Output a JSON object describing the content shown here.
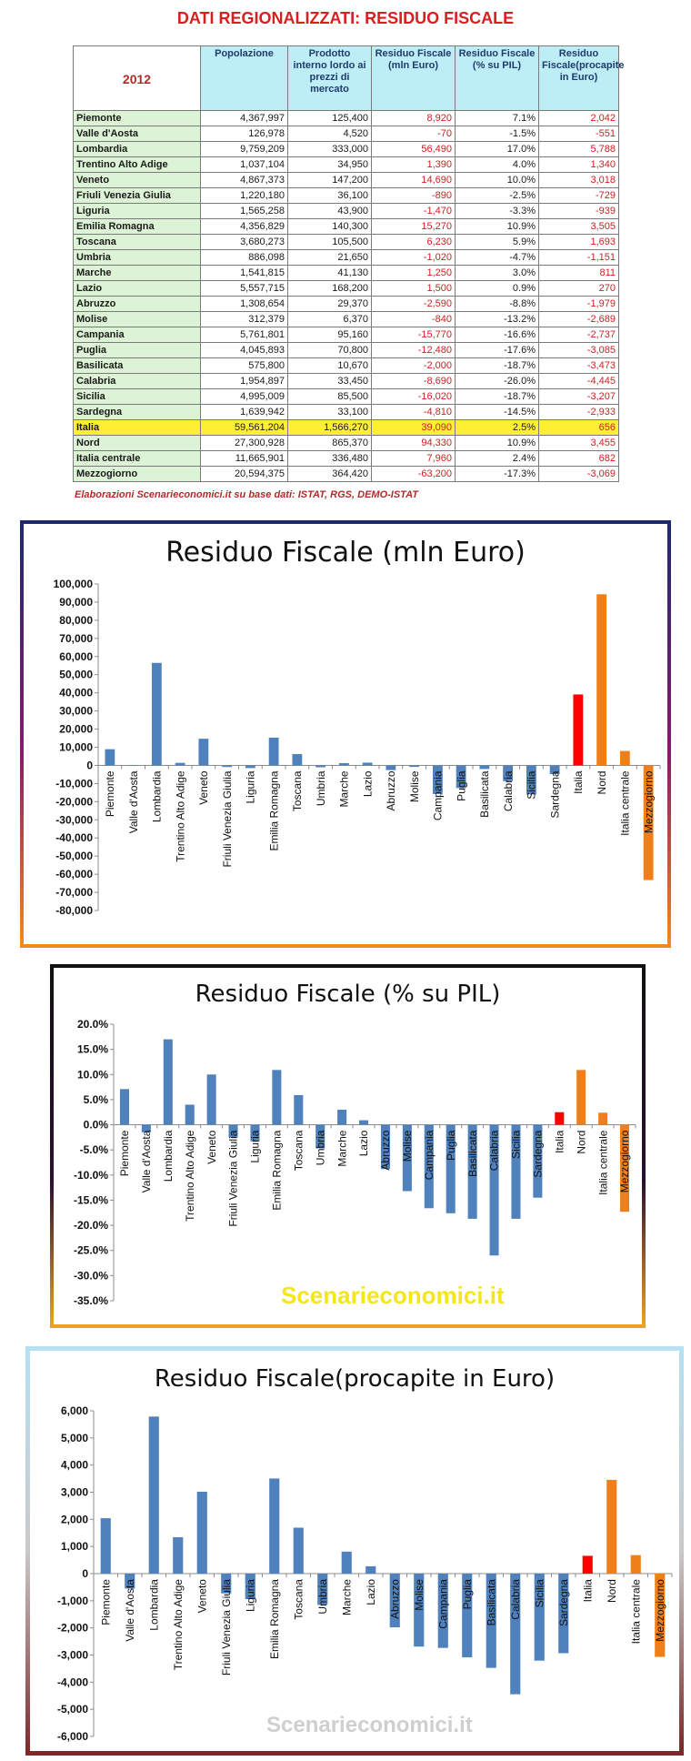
{
  "header": {
    "title": "DATI REGIONALIZZATI: RESIDUO FISCALE",
    "year": "2012"
  },
  "table": {
    "columns": [
      "Popolazione",
      "Prodotto interno lordo ai prezzi di mercato",
      "Residuo Fiscale (mln Euro)",
      "Residuo Fiscale (% su PIL)",
      "Residuo Fiscale(procapite in Euro)"
    ],
    "rows": [
      {
        "region": "Piemonte",
        "pop": "4,367,997",
        "pil": "125,400",
        "res": "8,920",
        "pct": "7.1%",
        "pro": "2,042"
      },
      {
        "region": "Valle d'Aosta",
        "pop": "126,978",
        "pil": "4,520",
        "res": "-70",
        "pct": "-1.5%",
        "pro": "-551"
      },
      {
        "region": "Lombardia",
        "pop": "9,759,209",
        "pil": "333,000",
        "res": "56,490",
        "pct": "17.0%",
        "pro": "5,788"
      },
      {
        "region": "Trentino Alto Adige",
        "pop": "1,037,104",
        "pil": "34,950",
        "res": "1,390",
        "pct": "4.0%",
        "pro": "1,340"
      },
      {
        "region": "Veneto",
        "pop": "4,867,373",
        "pil": "147,200",
        "res": "14,690",
        "pct": "10.0%",
        "pro": "3,018"
      },
      {
        "region": "Friuli Venezia Giulia",
        "pop": "1,220,180",
        "pil": "36,100",
        "res": "-890",
        "pct": "-2.5%",
        "pro": "-729"
      },
      {
        "region": "Liguria",
        "pop": "1,565,258",
        "pil": "43,900",
        "res": "-1,470",
        "pct": "-3.3%",
        "pro": "-939"
      },
      {
        "region": "Emilia Romagna",
        "pop": "4,356,829",
        "pil": "140,300",
        "res": "15,270",
        "pct": "10.9%",
        "pro": "3,505"
      },
      {
        "region": "Toscana",
        "pop": "3,680,273",
        "pil": "105,500",
        "res": "6,230",
        "pct": "5.9%",
        "pro": "1,693"
      },
      {
        "region": "Umbria",
        "pop": "886,098",
        "pil": "21,650",
        "res": "-1,020",
        "pct": "-4.7%",
        "pro": "-1,151"
      },
      {
        "region": "Marche",
        "pop": "1,541,815",
        "pil": "41,130",
        "res": "1,250",
        "pct": "3.0%",
        "pro": "811"
      },
      {
        "region": "Lazio",
        "pop": "5,557,715",
        "pil": "168,200",
        "res": "1,500",
        "pct": "0.9%",
        "pro": "270"
      },
      {
        "region": "Abruzzo",
        "pop": "1,308,654",
        "pil": "29,370",
        "res": "-2,590",
        "pct": "-8.8%",
        "pro": "-1,979"
      },
      {
        "region": "Molise",
        "pop": "312,379",
        "pil": "6,370",
        "res": "-840",
        "pct": "-13.2%",
        "pro": "-2,689"
      },
      {
        "region": "Campania",
        "pop": "5,761,801",
        "pil": "95,160",
        "res": "-15,770",
        "pct": "-16.6%",
        "pro": "-2,737"
      },
      {
        "region": "Puglia",
        "pop": "4,045,893",
        "pil": "70,800",
        "res": "-12,480",
        "pct": "-17.6%",
        "pro": "-3,085"
      },
      {
        "region": "Basilicata",
        "pop": "575,800",
        "pil": "10,670",
        "res": "-2,000",
        "pct": "-18.7%",
        "pro": "-3,473"
      },
      {
        "region": "Calabria",
        "pop": "1,954,897",
        "pil": "33,450",
        "res": "-8,690",
        "pct": "-26.0%",
        "pro": "-4,445"
      },
      {
        "region": "Sicilia",
        "pop": "4,995,009",
        "pil": "85,500",
        "res": "-16,020",
        "pct": "-18.7%",
        "pro": "-3,207"
      },
      {
        "region": "Sardegna",
        "pop": "1,639,942",
        "pil": "33,100",
        "res": "-4,810",
        "pct": "-14.5%",
        "pro": "-2,933"
      },
      {
        "region": "Italia",
        "pop": "59,561,204",
        "pil": "1,566,270",
        "res": "39,090",
        "pct": "2.5%",
        "pro": "656",
        "highlight": true
      },
      {
        "region": "Nord",
        "pop": "27,300,928",
        "pil": "865,370",
        "res": "94,330",
        "pct": "10.9%",
        "pro": "3,455"
      },
      {
        "region": "Italia centrale",
        "pop": "11,665,901",
        "pil": "336,480",
        "res": "7,960",
        "pct": "2.4%",
        "pro": "682"
      },
      {
        "region": "Mezzogiorno",
        "pop": "20,594,375",
        "pil": "364,420",
        "res": "-63,200",
        "pct": "-17.3%",
        "pro": "-3,069"
      }
    ],
    "source": "Elaborazioni Scenarieconomici.it su base dati: ISTAT, RGS, DEMO-ISTAT"
  },
  "watermark": "Scenarieconomici.it",
  "colors": {
    "regional_bar": "#4f81bd",
    "italia_bar": "#ff0000",
    "macro_bar": "#f07f1a",
    "title_red": "#d81e1e",
    "header_bg": "#bdeef6",
    "region_bg": "#ddf3d5",
    "italia_row": "#ffef33"
  },
  "chart_data": [
    {
      "type": "bar",
      "title": "Residuo Fiscale (mln Euro)",
      "categories": [
        "Piemonte",
        "Valle d'Aosta",
        "Lombardia",
        "Trentino Alto Adige",
        "Veneto",
        "Friuli Venezia Giulia",
        "Liguria",
        "Emilia Romagna",
        "Toscana",
        "Umbria",
        "Marche",
        "Lazio",
        "Abruzzo",
        "Molise",
        "Campania",
        "Puglia",
        "Basilicata",
        "Calabria",
        "Sicilia",
        "Sardegna",
        "Italia",
        "Nord",
        "Italia centrale",
        "Mezzogiorno"
      ],
      "values": [
        8920,
        -70,
        56490,
        1390,
        14690,
        -890,
        -1470,
        15270,
        6230,
        -1020,
        1250,
        1500,
        -2590,
        -840,
        -15770,
        -12480,
        -2000,
        -8690,
        -16020,
        -4810,
        39090,
        94330,
        7960,
        -63200
      ],
      "ylim": [
        -80000,
        100000
      ],
      "yticks": [
        "100,000",
        "90,000",
        "80,000",
        "70,000",
        "60,000",
        "50,000",
        "40,000",
        "30,000",
        "20,000",
        "10,000",
        "0",
        "-10,000",
        "-20,000",
        "-30,000",
        "-40,000",
        "-50,000",
        "-60,000",
        "-70,000",
        "-80,000"
      ],
      "grid": false
    },
    {
      "type": "bar",
      "title": "Residuo Fiscale (% su PIL)",
      "categories": [
        "Piemonte",
        "Valle d'Aosta",
        "Lombardia",
        "Trentino Alto Adige",
        "Veneto",
        "Friuli Venezia Giulia",
        "Liguria",
        "Emilia Romagna",
        "Toscana",
        "Umbria",
        "Marche",
        "Lazio",
        "Abruzzo",
        "Molise",
        "Campania",
        "Puglia",
        "Basilicata",
        "Calabria",
        "Sicilia",
        "Sardegna",
        "Italia",
        "Nord",
        "Italia centrale",
        "Mezzogiorno"
      ],
      "values": [
        7.1,
        -1.5,
        17.0,
        4.0,
        10.0,
        -2.5,
        -3.3,
        10.9,
        5.9,
        -4.7,
        3.0,
        0.9,
        -8.8,
        -13.2,
        -16.6,
        -17.6,
        -18.7,
        -26.0,
        -18.7,
        -14.5,
        2.5,
        10.9,
        2.4,
        -17.3
      ],
      "ylim": [
        -35,
        20
      ],
      "yticks": [
        "20.0%",
        "15.0%",
        "10.0%",
        "5.0%",
        "0.0%",
        "-5.0%",
        "-10.0%",
        "-15.0%",
        "-20.0%",
        "-25.0%",
        "-30.0%",
        "-35.0%"
      ],
      "grid": false
    },
    {
      "type": "bar",
      "title": "Residuo Fiscale(procapite in Euro)",
      "categories": [
        "Piemonte",
        "Valle d'Aosta",
        "Lombardia",
        "Trentino Alto Adige",
        "Veneto",
        "Friuli Venezia Giulia",
        "Liguria",
        "Emilia Romagna",
        "Toscana",
        "Umbria",
        "Marche",
        "Lazio",
        "Abruzzo",
        "Molise",
        "Campania",
        "Puglia",
        "Basilicata",
        "Calabria",
        "Sicilia",
        "Sardegna",
        "Italia",
        "Nord",
        "Italia centrale",
        "Mezzogiorno"
      ],
      "values": [
        2042,
        -551,
        5788,
        1340,
        3018,
        -729,
        -939,
        3505,
        1693,
        -1151,
        811,
        270,
        -1979,
        -2689,
        -2737,
        -3085,
        -3473,
        -4445,
        -3207,
        -2933,
        656,
        3455,
        682,
        -3069
      ],
      "ylim": [
        -6000,
        6000
      ],
      "yticks": [
        "6,000",
        "5,000",
        "4,000",
        "3,000",
        "2,000",
        "1,000",
        "0",
        "-1,000",
        "-2,000",
        "-3,000",
        "-4,000",
        "-5,000",
        "-6,000"
      ],
      "grid": false
    }
  ]
}
